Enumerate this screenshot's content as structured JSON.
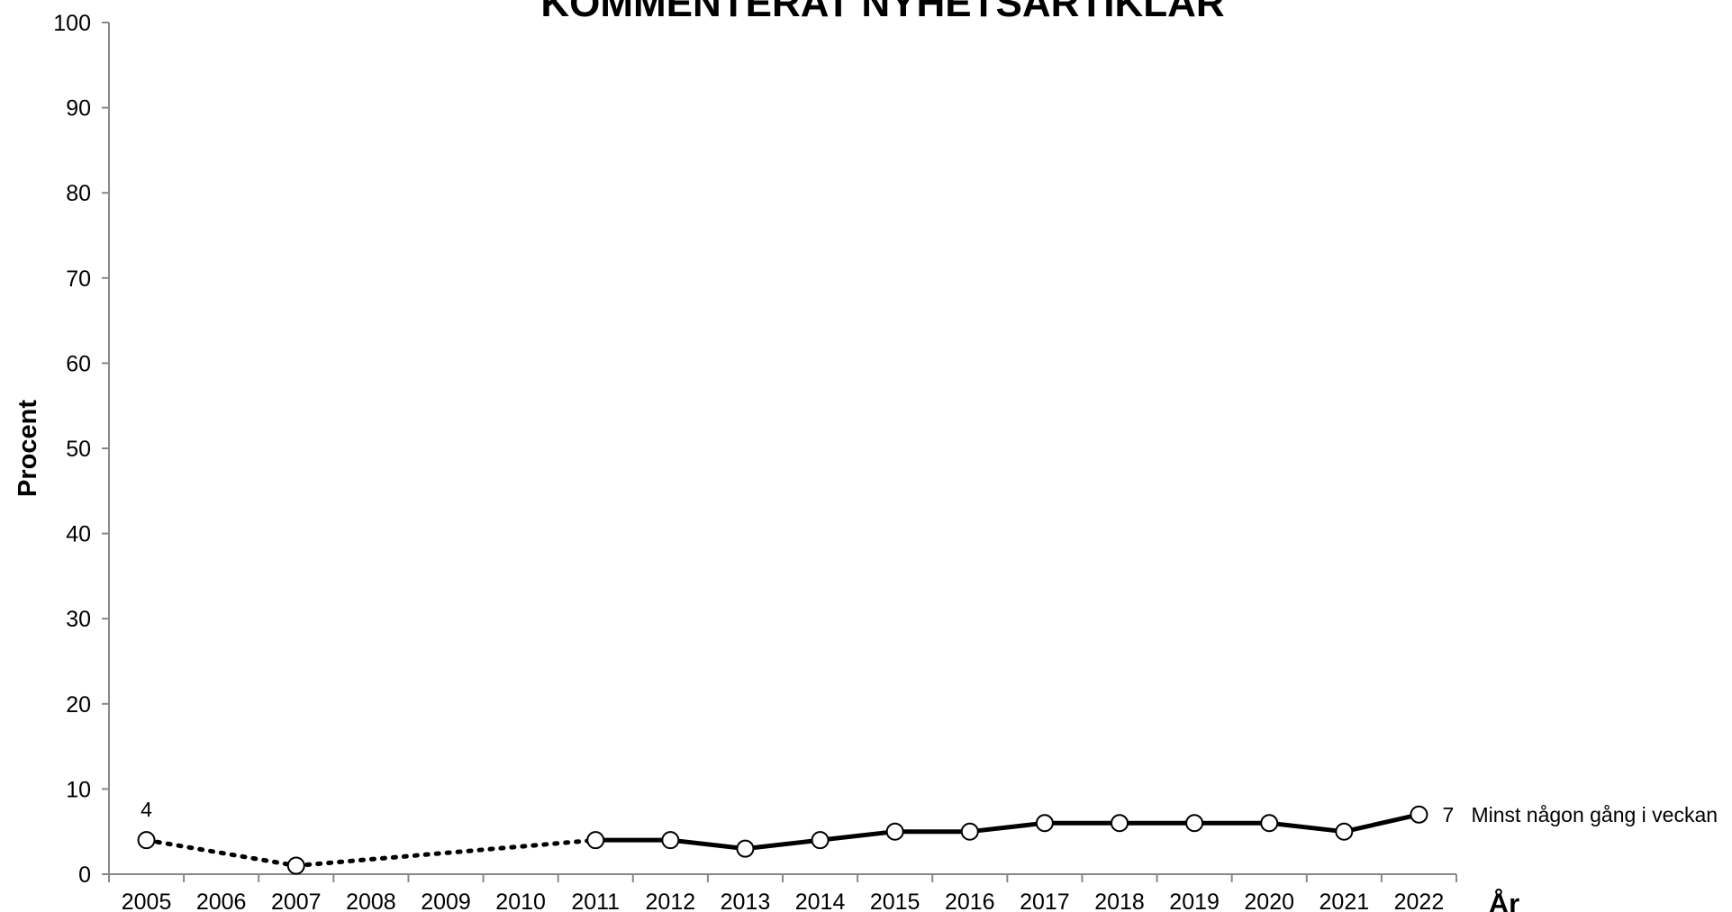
{
  "chart_data": {
    "type": "line",
    "title": "KOMMENTERAT NYHETSARTIKLAR",
    "xlabel": "År",
    "ylabel": "Procent",
    "ylim": [
      0,
      100
    ],
    "yticks": [
      0,
      10,
      20,
      30,
      40,
      50,
      60,
      70,
      80,
      90,
      100
    ],
    "categories": [
      "2005",
      "2006",
      "2007",
      "2008",
      "2009",
      "2010",
      "2011",
      "2012",
      "2013",
      "2014",
      "2015",
      "2016",
      "2017",
      "2018",
      "2019",
      "2020",
      "2021",
      "2022"
    ],
    "grid": false,
    "series": [
      {
        "name": "Minst någon gång i veckan",
        "values": [
          4,
          null,
          1,
          null,
          null,
          null,
          4,
          4,
          3,
          4,
          5,
          5,
          6,
          6,
          6,
          6,
          5,
          7
        ],
        "dotted_segment_years": [
          "2005",
          "2007",
          "2011"
        ],
        "point_labels": [
          {
            "year": "2005",
            "text": "4"
          },
          {
            "year": "2022",
            "text": "7"
          }
        ],
        "line_color": "#000000",
        "marker_fill": "#ffffff"
      }
    ]
  }
}
